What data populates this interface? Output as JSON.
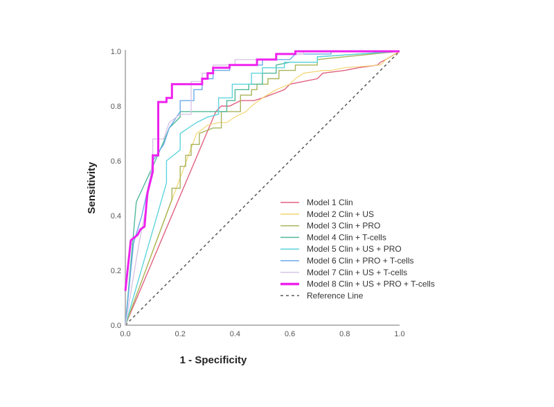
{
  "chart_data": {
    "type": "line",
    "title": "",
    "xlabel": "1 - Specificity",
    "ylabel": "Sensitivity",
    "xlim": [
      0,
      1
    ],
    "ylim": [
      0,
      1
    ],
    "grid": false,
    "legend_position": "bottom-right",
    "x_ticks": [
      "0.0",
      "0.2",
      "0.4",
      "0.6",
      "0.8",
      "1.0"
    ],
    "y_ticks": [
      "0.0",
      "0.2",
      "0.4",
      "0.6",
      "0.8",
      "1.0"
    ],
    "reference_line": {
      "name": "Reference Line",
      "color": "#555555",
      "dashed": true,
      "x": [
        0,
        1
      ],
      "y": [
        0,
        1
      ]
    },
    "series": [
      {
        "name": "Model 1 Clin",
        "color": "#e06080",
        "width": 1.4,
        "x": [
          0,
          0.33,
          0.35,
          0.38,
          0.42,
          0.47,
          0.5,
          0.58,
          0.6,
          0.7,
          0.72,
          0.8,
          0.85,
          0.92,
          0.93,
          0.95,
          1.0
        ],
        "y": [
          0,
          0.78,
          0.8,
          0.8,
          0.82,
          0.82,
          0.83,
          0.86,
          0.88,
          0.9,
          0.92,
          0.93,
          0.94,
          0.95,
          0.96,
          0.97,
          1.0
        ]
      },
      {
        "name": "Model 2 Clin + US",
        "color": "#f2d570",
        "width": 1.2,
        "x": [
          0,
          0.26,
          0.3,
          0.34,
          0.37,
          0.4,
          0.44,
          0.46,
          0.5,
          0.55,
          0.6,
          0.62,
          0.65,
          0.72,
          0.75,
          0.8,
          0.93,
          0.95,
          1.0
        ],
        "y": [
          0,
          0.7,
          0.73,
          0.74,
          0.74,
          0.76,
          0.78,
          0.8,
          0.83,
          0.86,
          0.88,
          0.9,
          0.92,
          0.93,
          0.93,
          0.94,
          0.95,
          0.97,
          1.0
        ]
      },
      {
        "name": "Model 3 Clin + PRO",
        "color": "#a8b45a",
        "width": 1.4,
        "x": [
          0,
          0.17,
          0.17,
          0.2,
          0.2,
          0.22,
          0.22,
          0.24,
          0.24,
          0.27,
          0.27,
          0.32,
          0.35,
          0.35,
          0.42,
          0.42,
          0.46,
          0.46,
          0.48,
          0.48,
          0.52,
          0.52,
          0.56,
          0.56,
          0.62,
          0.62,
          0.7,
          0.7,
          1.0
        ],
        "y": [
          0,
          0.46,
          0.5,
          0.5,
          0.58,
          0.58,
          0.62,
          0.62,
          0.66,
          0.66,
          0.7,
          0.72,
          0.72,
          0.78,
          0.78,
          0.84,
          0.84,
          0.86,
          0.86,
          0.88,
          0.88,
          0.9,
          0.9,
          0.93,
          0.93,
          0.95,
          0.95,
          0.97,
          1.0
        ]
      },
      {
        "name": "Model 4 Clin + T-cells",
        "color": "#4fb89a",
        "width": 1.4,
        "x": [
          0,
          0.04,
          0.1,
          0.14,
          0.16,
          0.2,
          0.2,
          0.35,
          0.37,
          0.37,
          0.4,
          0.4,
          0.45,
          0.45,
          0.5,
          0.5,
          0.55,
          0.55,
          0.6,
          0.7,
          0.7,
          1.0
        ],
        "y": [
          0,
          0.45,
          0.58,
          0.67,
          0.72,
          0.76,
          0.78,
          0.78,
          0.78,
          0.82,
          0.82,
          0.86,
          0.86,
          0.88,
          0.88,
          0.92,
          0.92,
          0.95,
          0.96,
          0.96,
          0.98,
          1.0
        ]
      },
      {
        "name": "Model 5 Clin + US + PRO",
        "color": "#5dd4dc",
        "width": 1.4,
        "x": [
          0,
          0.13,
          0.15,
          0.15,
          0.2,
          0.2,
          0.23,
          0.26,
          0.3,
          0.34,
          0.34,
          0.39,
          0.39,
          0.46,
          0.46,
          0.5,
          0.5,
          0.58,
          0.58,
          0.7,
          0.7,
          1.0
        ],
        "y": [
          0,
          0.45,
          0.52,
          0.6,
          0.64,
          0.7,
          0.72,
          0.74,
          0.76,
          0.77,
          0.83,
          0.83,
          0.88,
          0.88,
          0.92,
          0.92,
          0.94,
          0.94,
          0.96,
          0.96,
          0.98,
          1.0
        ]
      },
      {
        "name": "Model 6 Clin + PRO + T-cells",
        "color": "#6aaae8",
        "width": 1.4,
        "x": [
          0,
          0.03,
          0.06,
          0.1,
          0.1,
          0.14,
          0.16,
          0.2,
          0.2,
          0.25,
          0.25,
          0.28,
          0.28,
          0.32,
          0.32,
          0.38,
          0.38,
          0.5,
          0.5,
          0.6,
          0.62,
          0.75,
          0.75,
          1.0
        ],
        "y": [
          0,
          0.3,
          0.4,
          0.58,
          0.6,
          0.66,
          0.72,
          0.78,
          0.82,
          0.82,
          0.86,
          0.86,
          0.9,
          0.9,
          0.93,
          0.93,
          0.95,
          0.95,
          0.97,
          0.97,
          0.99,
          0.99,
          1.0,
          1.0
        ]
      },
      {
        "name": "Model 7 Clin + US + T-cells",
        "color": "#d8c4e4",
        "width": 1.4,
        "x": [
          0,
          0.05,
          0.08,
          0.1,
          0.1,
          0.14,
          0.16,
          0.2,
          0.24,
          0.24,
          0.28,
          0.28,
          0.32,
          0.32,
          0.4,
          0.4,
          0.55,
          0.55,
          0.65,
          0.65,
          1.0
        ],
        "y": [
          0,
          0.3,
          0.45,
          0.62,
          0.68,
          0.68,
          0.74,
          0.77,
          0.77,
          0.89,
          0.89,
          0.92,
          0.92,
          0.95,
          0.95,
          0.97,
          0.97,
          0.99,
          0.99,
          1.0,
          1.0
        ]
      },
      {
        "name": "Model 8 Clin + US + PRO + T-cells",
        "color": "#ee22ee",
        "width": 3,
        "x": [
          0,
          0.02,
          0.045,
          0.055,
          0.07,
          0.08,
          0.1,
          0.1,
          0.12,
          0.12,
          0.15,
          0.15,
          0.17,
          0.17,
          0.28,
          0.28,
          0.3,
          0.3,
          0.32,
          0.32,
          0.38,
          0.38,
          0.48,
          0.48,
          0.55,
          0.55,
          0.62,
          0.62,
          0.72,
          0.72,
          1.0
        ],
        "y": [
          0.125,
          0.31,
          0.33,
          0.35,
          0.36,
          0.48,
          0.56,
          0.62,
          0.62,
          0.815,
          0.815,
          0.83,
          0.83,
          0.88,
          0.88,
          0.9,
          0.9,
          0.92,
          0.92,
          0.94,
          0.94,
          0.95,
          0.95,
          0.97,
          0.97,
          0.99,
          0.99,
          1.0,
          1.0,
          1.0,
          1.0
        ]
      }
    ]
  }
}
